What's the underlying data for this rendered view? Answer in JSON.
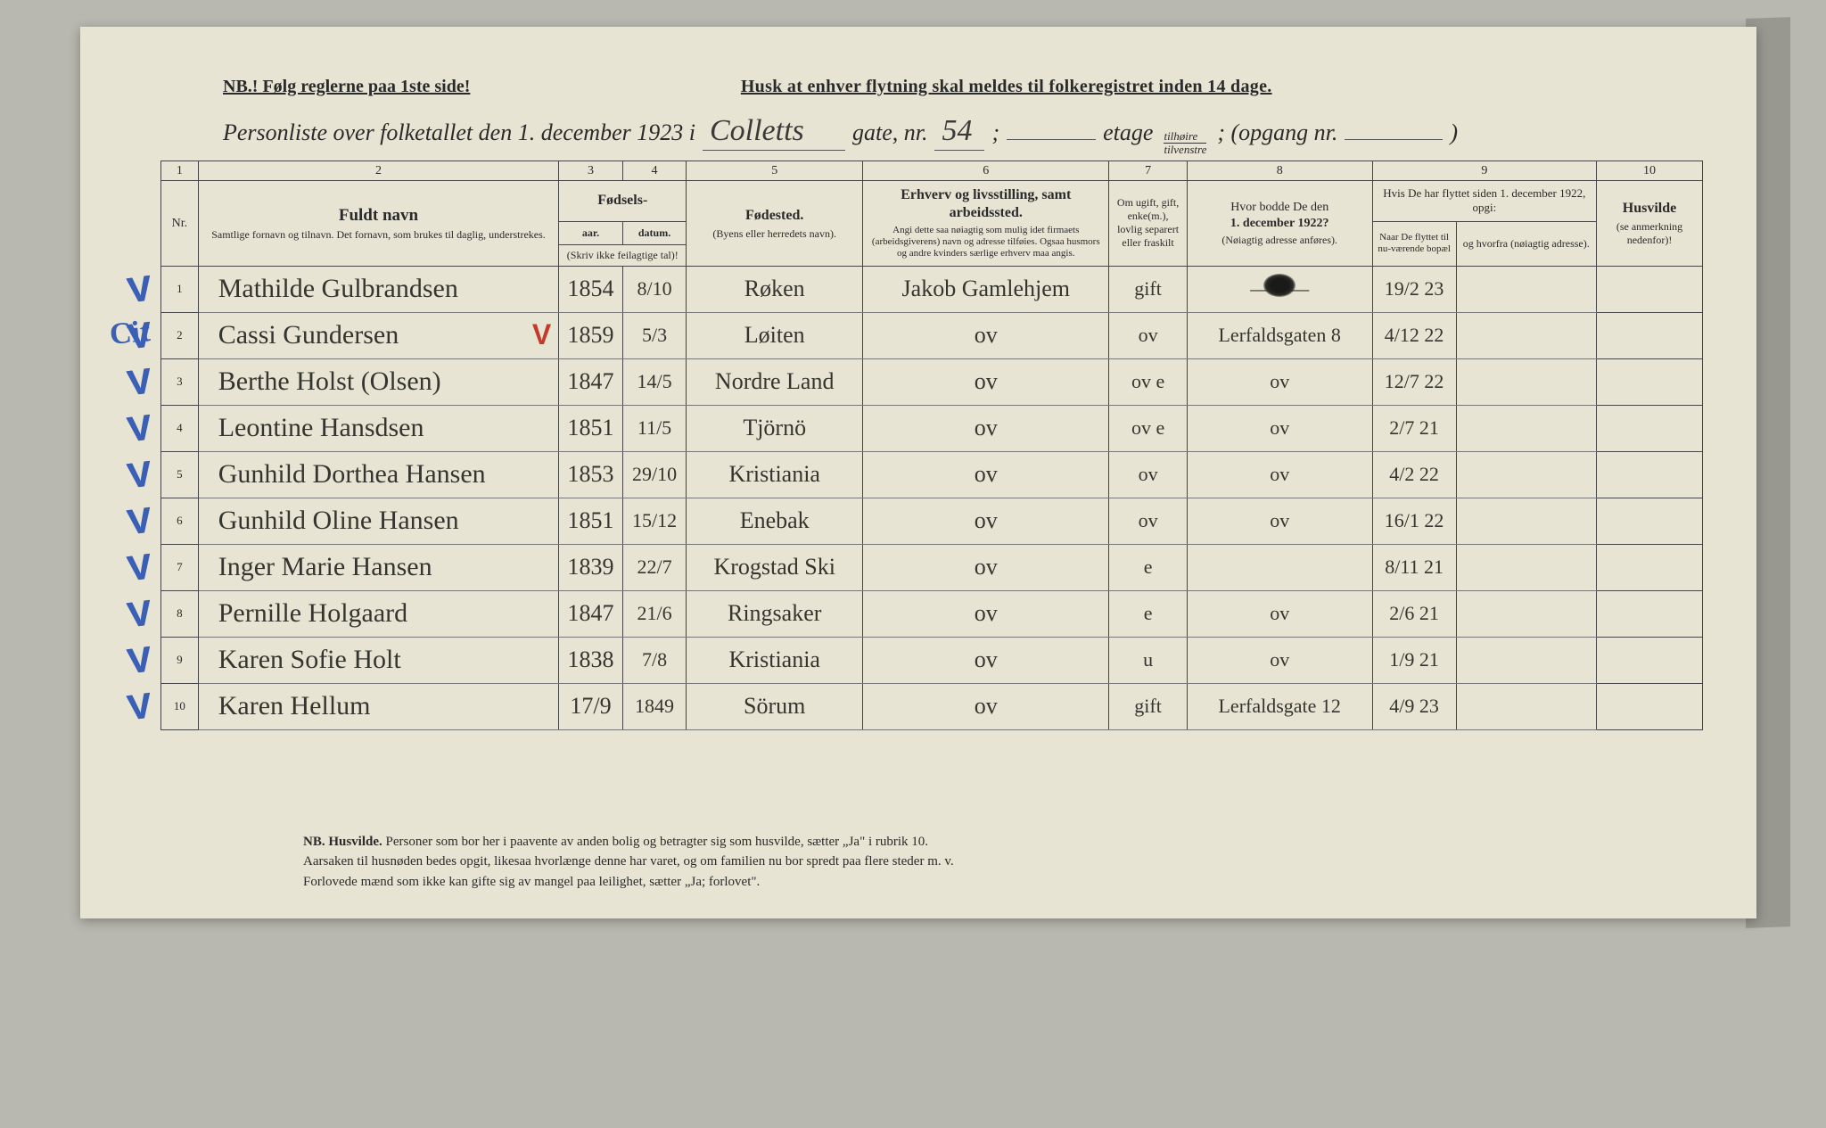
{
  "colors": {
    "page_bg": "#b8b8b0",
    "paper_bg": "#e8e4d4",
    "ink": "#2a2a2a",
    "handwriting": "#35352f",
    "blue_pencil": "#3a5fb5",
    "red_pencil": "#c43a2a",
    "rule_line": "#444444"
  },
  "header": {
    "nb_line": "NB.! Følg reglerne paa 1ste side!",
    "husk_line": "Husk at enhver flytning skal meldes til folkeregistret inden 14 dage.",
    "title_prefix": "Personliste over folketallet den 1. december 1923 i",
    "street_written": "Colletts",
    "gate_label": "gate, nr.",
    "gate_nr_written": "54",
    "semicolon": ";",
    "etage_label": "etage",
    "etage_top": "tilhøire",
    "etage_bottom": "tilvenstre",
    "opgang_label": "; (opgang nr.",
    "closing_paren": ")"
  },
  "columns": {
    "nums": [
      "1",
      "2",
      "3",
      "4",
      "5",
      "6",
      "7",
      "8",
      "9",
      "10"
    ],
    "c1": "Nr.",
    "c2_title": "Fuldt navn",
    "c2_sub": "Samtlige fornavn og tilnavn. Det fornavn, som brukes til daglig, understrekes.",
    "c34_group": "Fødsels-",
    "c3": "aar.",
    "c4": "datum.",
    "c34_note": "(Skriv ikke feilagtige tal)!",
    "c5_title": "Fødested.",
    "c5_sub": "(Byens eller herredets navn).",
    "c6_title": "Erhverv og livsstilling, samt arbeidssted.",
    "c6_sub": "Angi dette saa nøiagtig som mulig idet firmaets (arbeidsgiverens) navn og adresse tilføies. Ogsaa husmors og andre kvinders særlige erhverv maa angis.",
    "c7": "Om ugift, gift, enke(m.), lovlig separert eller fraskilt",
    "c8_line1": "Hvor bodde De den",
    "c8_line2": "1. december 1922?",
    "c8_sub": "(Nøiagtig adresse anføres).",
    "c9_group": "Hvis De har flyttet siden 1. december 1922, opgi:",
    "c9a": "Naar De flyttet til nu-værende bopæl",
    "c9b": "og hvorfra (nøiagtig adresse).",
    "c10_title": "Husvilde",
    "c10_sub": "(se anmerkning nedenfor)!"
  },
  "rows": [
    {
      "n": "1",
      "tick": "V",
      "name": "Mathilde Gulbrandsen",
      "year": "1854",
      "date": "8/10",
      "birthplace": "Røken",
      "occupation": "Jakob Gamlehjem",
      "status": "gift",
      "addr1922": "———",
      "moved": "19/2 23",
      "from": ""
    },
    {
      "n": "2",
      "tick": "V",
      "cit": "Cit",
      "name": "Cassi Gundersen",
      "red": "V",
      "year": "1859",
      "date": "5/3",
      "birthplace": "Løiten",
      "occupation": "ov",
      "status": "ov",
      "addr1922": "Lerfaldsgaten 8",
      "moved": "4/12 22",
      "from": ""
    },
    {
      "n": "3",
      "tick": "V",
      "name": "Berthe Holst (Olsen)",
      "year": "1847",
      "date": "14/5",
      "birthplace": "Nordre Land",
      "occupation": "ov",
      "status": "ov e",
      "addr1922": "ov",
      "moved": "12/7 22",
      "from": ""
    },
    {
      "n": "4",
      "tick": "V",
      "name": "Leontine Hansdsen",
      "year": "1851",
      "date": "11/5",
      "birthplace": "Tjörnö",
      "occupation": "ov",
      "status": "ov e",
      "addr1922": "ov",
      "moved": "2/7 21",
      "from": ""
    },
    {
      "n": "5",
      "tick": "V",
      "name": "Gunhild Dorthea Hansen",
      "year": "1853",
      "date": "29/10",
      "birthplace": "Kristiania",
      "occupation": "ov",
      "status": "ov",
      "addr1922": "ov",
      "moved": "4/2 22",
      "from": ""
    },
    {
      "n": "6",
      "tick": "V",
      "name": "Gunhild Oline Hansen",
      "year": "1851",
      "date": "15/12",
      "birthplace": "Enebak",
      "occupation": "ov",
      "status": "ov",
      "addr1922": "ov",
      "moved": "16/1 22",
      "from": ""
    },
    {
      "n": "7",
      "tick": "V",
      "name": "Inger Marie Hansen",
      "year": "1839",
      "date": "22/7",
      "birthplace": "Krogstad Ski",
      "occupation": "ov",
      "status": "e",
      "addr1922": "",
      "moved": "8/11 21",
      "from": ""
    },
    {
      "n": "8",
      "tick": "V",
      "name": "Pernille Holgaard",
      "year": "1847",
      "date": "21/6",
      "birthplace": "Ringsaker",
      "occupation": "ov",
      "status": "e",
      "addr1922": "ov",
      "moved": "2/6 21",
      "from": ""
    },
    {
      "n": "9",
      "tick": "V",
      "name": "Karen Sofie Holt",
      "year": "1838",
      "date": "7/8",
      "birthplace": "Kristiania",
      "occupation": "ov",
      "status": "u",
      "addr1922": "ov",
      "moved": "1/9 21",
      "from": ""
    },
    {
      "n": "10",
      "tick": "V",
      "name": "Karen Hellum",
      "year": "17/9",
      "date": "1849",
      "birthplace": "Sörum",
      "occupation": "ov",
      "status": "gift",
      "addr1922": "Lerfaldsgate 12",
      "moved": "4/9 23",
      "from": ""
    }
  ],
  "footer": {
    "line1_nb": "NB. Husvilde.",
    "line1": "Personer som bor her i paavente av anden bolig og betragter sig som husvilde, sætter „Ja\" i rubrik 10.",
    "line2": "Aarsaken til husnøden bedes opgit, likesaa hvorlænge denne har varet, og om familien nu bor spredt paa flere steder m. v.",
    "line3": "Forlovede mænd som ikke kan gifte sig av mangel paa leilighet, sætter „Ja; forlovet\"."
  }
}
